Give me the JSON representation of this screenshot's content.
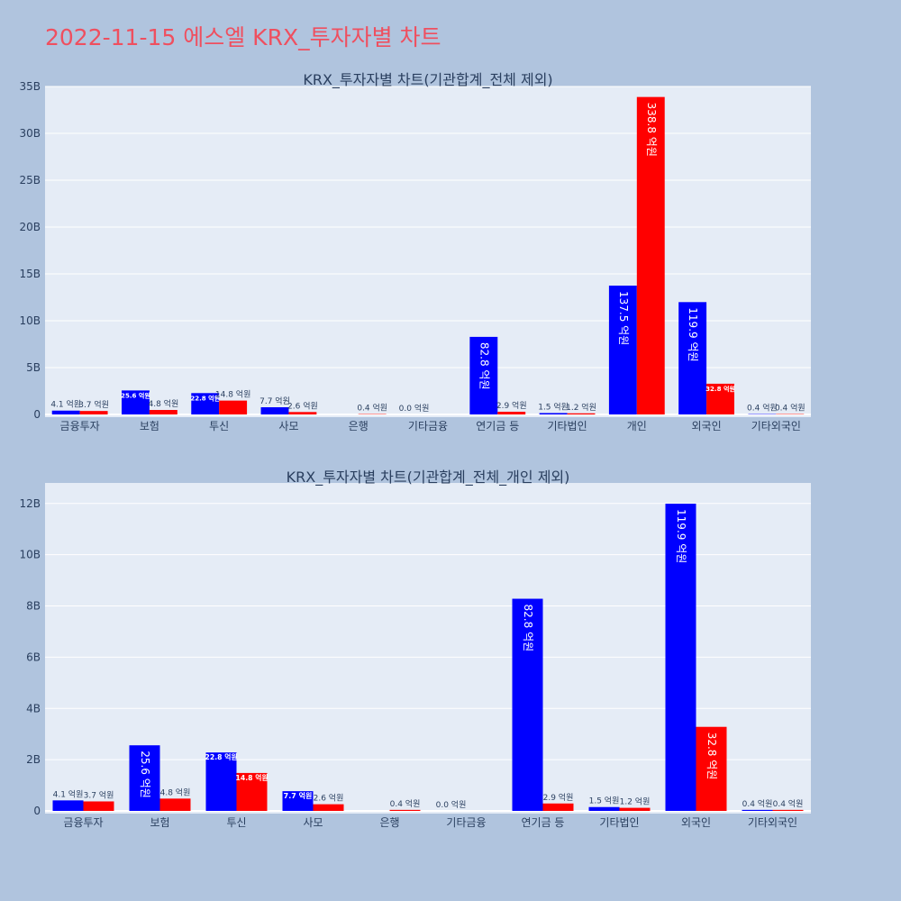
{
  "title": "2022-11-15 에스엘 KRX_투자자별 차트",
  "colors": {
    "title": "#ef4f5f",
    "buy": "#0000ff",
    "sell": "#ff0000",
    "background": "#b0c4de",
    "plot_bg": "#e5ecf6"
  },
  "chart_data": [
    {
      "type": "bar",
      "title": "KRX_투자자별 차트(기관합계_전체 제외)",
      "categories": [
        "금융투자",
        "보험",
        "투신",
        "사모",
        "은행",
        "기타금융",
        "연기금 등",
        "기타법인",
        "개인",
        "외국인",
        "기타외국인"
      ],
      "series": [
        {
          "color": "#0000ff",
          "values": [
            0.41,
            2.56,
            2.28,
            0.77,
            0,
            0.0,
            8.28,
            0.15,
            13.75,
            11.99,
            0.04
          ],
          "labels": [
            "4.1 억원",
            "25.6 억원",
            "22.8 억원",
            "7.7 억원",
            "",
            "0.0 억원",
            "82.8 억원",
            "1.5 억원",
            "137.5 억원",
            "119.9 억원",
            "0.4 억원"
          ]
        },
        {
          "color": "#ff0000",
          "values": [
            0.37,
            0.48,
            1.48,
            0.26,
            0.04,
            0,
            0.29,
            0.12,
            33.88,
            3.28,
            0.04
          ],
          "labels": [
            "3.7 억원",
            "4.8 억원",
            "14.8 억원",
            "2.6 억원",
            "0.4 억원",
            "",
            "2.9 억원",
            "1.2 억원",
            "338.8 억원",
            "32.8 억원",
            "0.4 억원"
          ]
        }
      ],
      "ylim": [
        0,
        35
      ],
      "yticks": [
        0,
        5,
        10,
        15,
        20,
        25,
        30,
        35
      ],
      "ytick_labels": [
        "0",
        "5B",
        "10B",
        "15B",
        "20B",
        "25B",
        "30B",
        "35B"
      ],
      "grid": true
    },
    {
      "type": "bar",
      "title": "KRX_투자자별 차트(기관합계_전체_개인 제외)",
      "categories": [
        "금융투자",
        "보험",
        "투신",
        "사모",
        "은행",
        "기타금융",
        "연기금 등",
        "기타법인",
        "외국인",
        "기타외국인"
      ],
      "series": [
        {
          "color": "#0000ff",
          "values": [
            0.41,
            2.56,
            2.28,
            0.77,
            0,
            0.0,
            8.28,
            0.15,
            11.99,
            0.04
          ],
          "labels": [
            "4.1 억원",
            "25.6 억원",
            "22.8 억원",
            "7.7 억원",
            "",
            "0.0 억원",
            "82.8 억원",
            "1.5 억원",
            "119.9 억원",
            "0.4 억원"
          ]
        },
        {
          "color": "#ff0000",
          "values": [
            0.37,
            0.48,
            1.48,
            0.26,
            0.04,
            0,
            0.29,
            0.12,
            3.28,
            0.04
          ],
          "labels": [
            "3.7 억원",
            "4.8 억원",
            "14.8 억원",
            "2.6 억원",
            "0.4 억원",
            "",
            "2.9 억원",
            "1.2 억원",
            "32.8 억원",
            "0.4 억원"
          ]
        }
      ],
      "ylim": [
        0,
        12.8
      ],
      "yticks": [
        0,
        2,
        4,
        6,
        8,
        10,
        12
      ],
      "ytick_labels": [
        "0",
        "2B",
        "4B",
        "6B",
        "8B",
        "10B",
        "12B"
      ],
      "grid": true
    }
  ]
}
